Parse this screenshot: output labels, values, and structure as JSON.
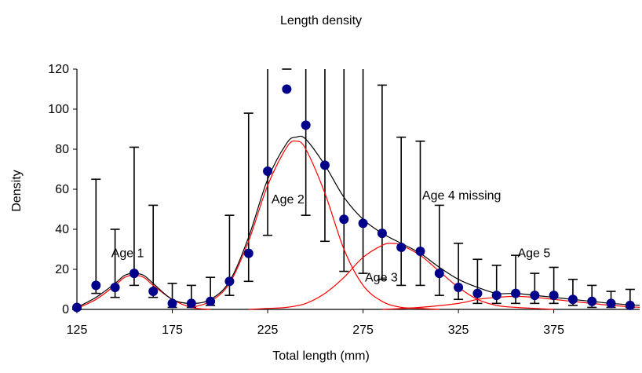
{
  "chart_data": {
    "type": "scatter",
    "title": "Length density",
    "xlabel": "Total length (mm)",
    "ylabel": "Density",
    "xlim": [
      125,
      420
    ],
    "ylim": [
      0,
      120
    ],
    "x_ticks": [
      125,
      175,
      225,
      275,
      325,
      375
    ],
    "y_ticks": [
      0,
      20,
      40,
      60,
      80,
      100,
      120
    ],
    "grid": false,
    "colors": {
      "points": "#00008b",
      "errorbars": "#000000",
      "total_fit": "#000000",
      "components": "#ff0000"
    },
    "observed": {
      "x": [
        125,
        135,
        145,
        155,
        165,
        175,
        185,
        195,
        205,
        215,
        225,
        235,
        245,
        255,
        265,
        275,
        285,
        295,
        305,
        315,
        325,
        335,
        345,
        355,
        365,
        375,
        385,
        395,
        405,
        415
      ],
      "y": [
        1,
        12,
        11,
        18,
        9,
        3,
        3,
        4,
        14,
        28,
        69,
        110,
        92,
        72,
        45,
        43,
        38,
        31,
        29,
        18,
        11,
        8,
        7,
        8,
        7,
        7,
        5,
        4,
        3,
        2
      ],
      "err_low": [
        0,
        8,
        6,
        12,
        6,
        1,
        1,
        2,
        7,
        14,
        37,
        120,
        47,
        34,
        19,
        18,
        15,
        12,
        12,
        7,
        5,
        3,
        3,
        3,
        3,
        3,
        2,
        1,
        1,
        1
      ],
      "err_high": [
        1,
        65,
        40,
        81,
        52,
        13,
        12,
        16,
        47,
        98,
        120,
        120,
        120,
        120,
        120,
        120,
        112,
        86,
        84,
        52,
        33,
        25,
        22,
        27,
        18,
        21,
        15,
        12,
        9,
        10
      ]
    },
    "total_fit": {
      "x": [
        125,
        135,
        145,
        150,
        155,
        160,
        165,
        175,
        185,
        195,
        205,
        215,
        225,
        235,
        240,
        245,
        255,
        265,
        275,
        285,
        295,
        305,
        315,
        325,
        335,
        345,
        355,
        365,
        375,
        385,
        395,
        405,
        420
      ],
      "y": [
        1,
        6,
        13,
        17,
        18,
        17,
        13,
        5,
        3,
        5,
        14,
        36,
        65,
        83,
        86,
        85,
        72,
        56,
        45,
        38,
        33,
        28,
        21,
        15,
        11,
        8,
        8,
        7,
        6,
        5,
        4,
        3,
        2
      ]
    },
    "components": [
      {
        "name": "Age 1",
        "x": [
          125,
          135,
          145,
          150,
          155,
          160,
          165,
          175,
          185,
          195
        ],
        "y": [
          0.5,
          5,
          12,
          16,
          17,
          16,
          12,
          5,
          1,
          0
        ]
      },
      {
        "name": "Age 2",
        "x": [
          185,
          195,
          205,
          215,
          225,
          235,
          240,
          245,
          255,
          265,
          275,
          285,
          295,
          305,
          315
        ],
        "y": [
          1,
          4,
          13,
          34,
          62,
          81,
          84,
          80,
          58,
          30,
          12,
          4,
          1,
          0.5,
          0
        ]
      },
      {
        "name": "Age 3",
        "x": [
          215,
          225,
          235,
          245,
          255,
          265,
          275,
          285,
          290,
          295,
          305,
          315,
          325,
          335,
          345,
          355,
          365,
          375
        ],
        "y": [
          0,
          0.5,
          1,
          3,
          8,
          16,
          26,
          32,
          33,
          32,
          27,
          19,
          11,
          5,
          2,
          1,
          0.5,
          0
        ]
      },
      {
        "name": "Age 5",
        "x": [
          285,
          305,
          325,
          335,
          345,
          355,
          365,
          375,
          385,
          395,
          405,
          420
        ],
        "y": [
          0,
          1,
          3,
          5,
          6,
          6.5,
          6,
          5,
          4,
          3,
          2,
          1
        ]
      }
    ],
    "annotations": [
      {
        "text": "Age 1",
        "x": 143,
        "y": 26
      },
      {
        "text": "Age 2",
        "x": 227,
        "y": 53
      },
      {
        "text": "Age 3",
        "x": 276,
        "y": 14
      },
      {
        "text": "Age 4 missing",
        "x": 306,
        "y": 55
      },
      {
        "text": "Age 5",
        "x": 356,
        "y": 26
      }
    ]
  }
}
